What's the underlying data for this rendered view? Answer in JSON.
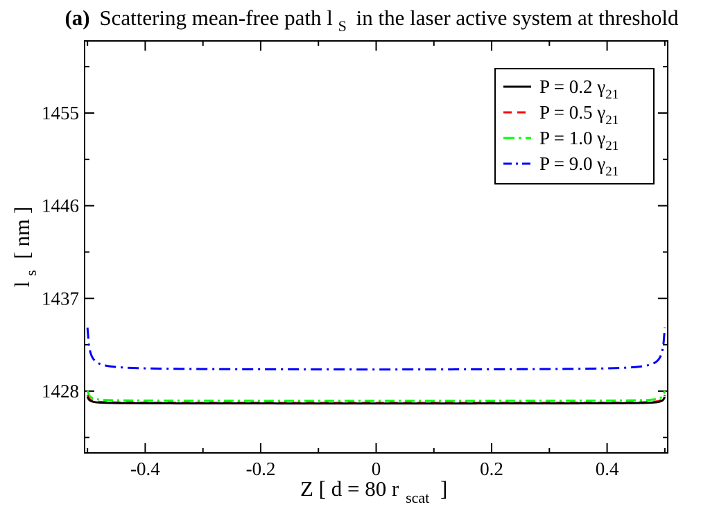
{
  "chart_data": {
    "type": "line",
    "title_prefix": "(a)",
    "title_text": "Scattering mean-free path l",
    "title_sub": "S",
    "title_suffix": "in the laser active system at threshold",
    "xlabel_main": "Z [ d = 80 r",
    "xlabel_sub": "scat",
    "xlabel_end": "]",
    "ylabel_main": "l",
    "ylabel_sub": "s",
    "ylabel_end": "[ nm ]",
    "xlim": [
      -0.505,
      0.505
    ],
    "ylim": [
      1422,
      1462
    ],
    "x_ticks": [
      -0.4,
      -0.2,
      0,
      0.2,
      0.4
    ],
    "x_tick_labels": [
      "-0.4",
      "-0.2",
      "0",
      "0.2",
      "0.4"
    ],
    "y_ticks": [
      1428,
      1437,
      1446,
      1455
    ],
    "y_tick_labels": [
      "1428",
      "1437",
      "1446",
      "1455"
    ],
    "grid": false,
    "legend_position": "top-right",
    "series": [
      {
        "name_main": "P =  0.2 γ",
        "name_sub": "21",
        "color": "#000000",
        "style": "solid",
        "base": 1426.8,
        "amp": 0.00226
      },
      {
        "name_main": "P =  0.5 γ",
        "name_sub": "21",
        "color": "#ff0000",
        "style": "dash",
        "base": 1426.85,
        "amp": 0.0027
      },
      {
        "name_main": "P =  1.0 γ",
        "name_sub": "21",
        "color": "#00ff00",
        "style": "dashdot",
        "base": 1427.05,
        "amp": 0.0034
      },
      {
        "name_main": "P =  9.0 γ",
        "name_sub": "21",
        "color": "#0000ff",
        "style": "dashdot2",
        "base": 1430.1,
        "amp": 0.0143
      }
    ]
  }
}
